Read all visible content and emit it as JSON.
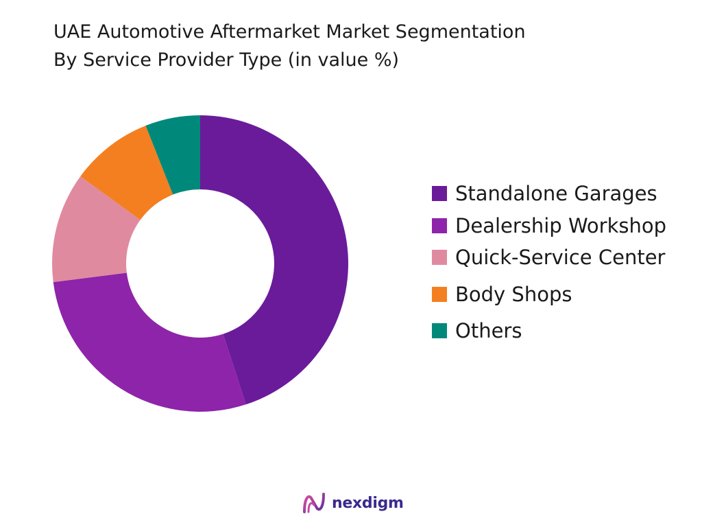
{
  "chart_data": {
    "type": "pie",
    "style": "donut",
    "title_lines": [
      "UAE Automotive Aftermarket Market Segmentation",
      "By Service Provider Type (in value %)"
    ],
    "categories": [
      "Standalone Garages",
      "Dealership Workshop",
      "Quick-Service Center",
      "Body Shops",
      "Others"
    ],
    "values": [
      45,
      28,
      12,
      9,
      6
    ],
    "colors": [
      "#6a1b9a",
      "#8e24aa",
      "#e08aa0",
      "#f47f20",
      "#00897b"
    ],
    "legend_position": "right"
  },
  "brand": {
    "name": "nexdigm",
    "logo_icon": "nexdigm-logo-icon"
  }
}
